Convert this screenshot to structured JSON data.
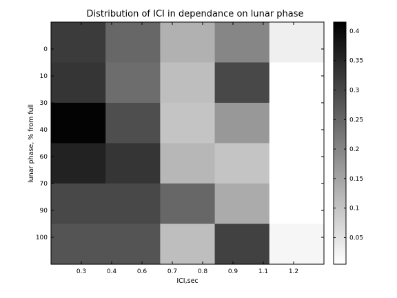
{
  "chart_data": {
    "type": "heatmap",
    "title": "Distribution of ICI in dependance on lunar phase",
    "xlabel": "ICI,sec",
    "ylabel": "lunar phase, % from full",
    "x_ticks": [
      "0.3",
      "0.4",
      "0.6",
      "0.7",
      "0.8",
      "0.9",
      "1.1",
      "1.2"
    ],
    "y_ticks": [
      "0",
      "10",
      "30",
      "40",
      "60",
      "70",
      "90",
      "100"
    ],
    "values": [
      [
        0.32,
        0.25,
        0.13,
        0.2,
        0.03
      ],
      [
        0.33,
        0.24,
        0.11,
        0.3,
        0.0
      ],
      [
        0.41,
        0.29,
        0.1,
        0.17,
        0.005
      ],
      [
        0.36,
        0.33,
        0.12,
        0.1,
        0.005
      ],
      [
        0.3,
        0.3,
        0.25,
        0.14,
        0.005
      ],
      [
        0.28,
        0.28,
        0.11,
        0.31,
        0.02
      ]
    ],
    "colormap": "gray-reversed",
    "clim": [
      0.005,
      0.415
    ],
    "colorbar": {
      "ticks": [
        "0.05",
        "0.1",
        "0.15",
        "0.2",
        "0.25",
        "0.3",
        "0.35",
        "0.4"
      ],
      "tick_values": [
        0.05,
        0.1,
        0.15,
        0.2,
        0.25,
        0.3,
        0.35,
        0.4
      ]
    }
  }
}
